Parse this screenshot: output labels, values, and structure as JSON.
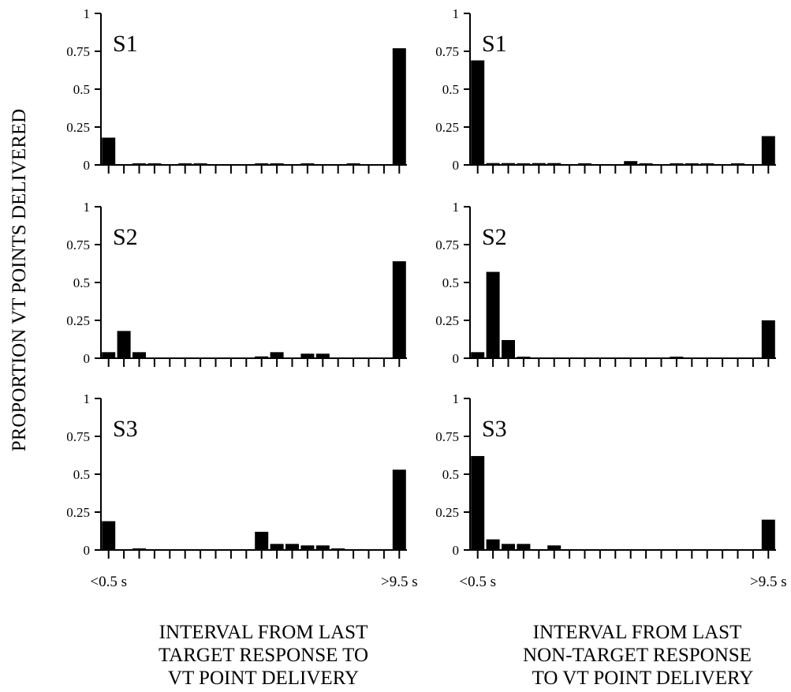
{
  "figure": {
    "ylabel": "PROPORTION VT POINTS DELIVERED",
    "xlabels": {
      "left": [
        "INTERVAL FROM LAST",
        "TARGET  RESPONSE TO",
        "VT POINT DELIVERY"
      ],
      "right": [
        "INTERVAL FROM LAST",
        "NON-TARGET RESPONSE",
        "TO VT POINT DELIVERY"
      ]
    }
  },
  "chart_data": [
    {
      "type": "bar",
      "panel": "S1 target",
      "subject": "S1",
      "ylim": [
        0,
        1
      ],
      "yticks": [
        "0",
        "0.25",
        "0.5",
        "0.75",
        "1"
      ],
      "x_first_label": "",
      "x_last_label": "",
      "values": [
        0.18,
        0.0,
        0.003,
        0.003,
        0.0,
        0.003,
        0.003,
        0.0,
        0.0,
        0.0,
        0.003,
        0.005,
        0.0,
        0.003,
        0.0,
        0.0,
        0.003,
        0.0,
        0.0,
        0.77
      ]
    },
    {
      "type": "bar",
      "panel": "S1 non-target",
      "subject": "S1",
      "ylim": [
        0,
        1
      ],
      "yticks": [
        "0",
        "0.25",
        "0.5",
        "0.75",
        "1"
      ],
      "x_first_label": "",
      "x_last_label": "",
      "values": [
        0.69,
        0.012,
        0.012,
        0.005,
        0.012,
        0.012,
        0.0,
        0.008,
        0.0,
        0.0,
        0.025,
        0.005,
        0.0,
        0.008,
        0.008,
        0.008,
        0.0,
        0.003,
        0.0,
        0.19
      ]
    },
    {
      "type": "bar",
      "panel": "S2 target",
      "subject": "S2",
      "ylim": [
        0,
        1
      ],
      "yticks": [
        "0",
        "0.25",
        "0.5",
        "0.75",
        "1"
      ],
      "x_first_label": "",
      "x_last_label": "",
      "values": [
        0.04,
        0.18,
        0.04,
        0.0,
        0.0,
        0.0,
        0.0,
        0.0,
        0.0,
        0.0,
        0.012,
        0.04,
        0.0,
        0.03,
        0.03,
        0.0,
        0.0,
        0.0,
        0.0,
        0.64
      ]
    },
    {
      "type": "bar",
      "panel": "S2 non-target",
      "subject": "S2",
      "ylim": [
        0,
        1
      ],
      "yticks": [
        "0",
        "0.25",
        "0.5",
        "0.75",
        "1"
      ],
      "x_first_label": "",
      "x_last_label": "",
      "values": [
        0.04,
        0.57,
        0.12,
        0.01,
        0.0,
        0.0,
        0.0,
        0.0,
        0.0,
        0.0,
        0.0,
        0.0,
        0.0,
        0.01,
        0.0,
        0.0,
        0.0,
        0.0,
        0.0,
        0.25
      ]
    },
    {
      "type": "bar",
      "panel": "S3 target",
      "subject": "S3",
      "ylim": [
        0,
        1
      ],
      "yticks": [
        "0",
        "0.25",
        "0.5",
        "0.75",
        "1"
      ],
      "x_first_label": "<0.5 s",
      "x_last_label": ">9.5 s",
      "values": [
        0.19,
        0.0,
        0.01,
        0.0,
        0.0,
        0.0,
        0.0,
        0.0,
        0.0,
        0.0,
        0.12,
        0.04,
        0.04,
        0.03,
        0.03,
        0.01,
        0.0,
        0.0,
        0.0,
        0.53
      ]
    },
    {
      "type": "bar",
      "panel": "S3 non-target",
      "subject": "S3",
      "ylim": [
        0,
        1
      ],
      "yticks": [
        "0",
        "0.25",
        "0.5",
        "0.75",
        "1"
      ],
      "x_first_label": "<0.5 s",
      "x_last_label": ">9.5 s",
      "values": [
        0.62,
        0.07,
        0.04,
        0.04,
        0.0,
        0.03,
        0.0,
        0.0,
        0.0,
        0.0,
        0.0,
        0.0,
        0.0,
        0.0,
        0.0,
        0.0,
        0.0,
        0.0,
        0.0,
        0.2
      ]
    }
  ]
}
